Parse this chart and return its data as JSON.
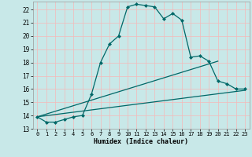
{
  "xlabel": "Humidex (Indice chaleur)",
  "xlim": [
    -0.5,
    23.5
  ],
  "ylim": [
    13,
    22.6
  ],
  "yticks": [
    13,
    14,
    15,
    16,
    17,
    18,
    19,
    20,
    21,
    22
  ],
  "xticks": [
    0,
    1,
    2,
    3,
    4,
    5,
    6,
    7,
    8,
    9,
    10,
    11,
    12,
    13,
    14,
    15,
    16,
    17,
    18,
    19,
    20,
    21,
    22,
    23
  ],
  "background_color": "#c8e8e8",
  "grid_color": "#f5b8b8",
  "line_color": "#006868",
  "line1_x": [
    0,
    1,
    2,
    3,
    4,
    5,
    6,
    7,
    8,
    9,
    10,
    11,
    12,
    13,
    14,
    15,
    16,
    17,
    18,
    19,
    20,
    21,
    22,
    23
  ],
  "line1_y": [
    13.9,
    13.5,
    13.5,
    13.7,
    13.9,
    14.0,
    15.6,
    18.0,
    19.4,
    20.0,
    22.2,
    22.4,
    22.3,
    22.2,
    21.3,
    21.7,
    21.2,
    18.4,
    18.5,
    18.1,
    16.6,
    16.4,
    16.0,
    16.0
  ],
  "line2_x": [
    0,
    20
  ],
  "line2_y": [
    13.9,
    18.1
  ],
  "line3_x": [
    0,
    23
  ],
  "line3_y": [
    13.9,
    15.9
  ],
  "marker_size": 2.5,
  "linewidth": 0.9
}
